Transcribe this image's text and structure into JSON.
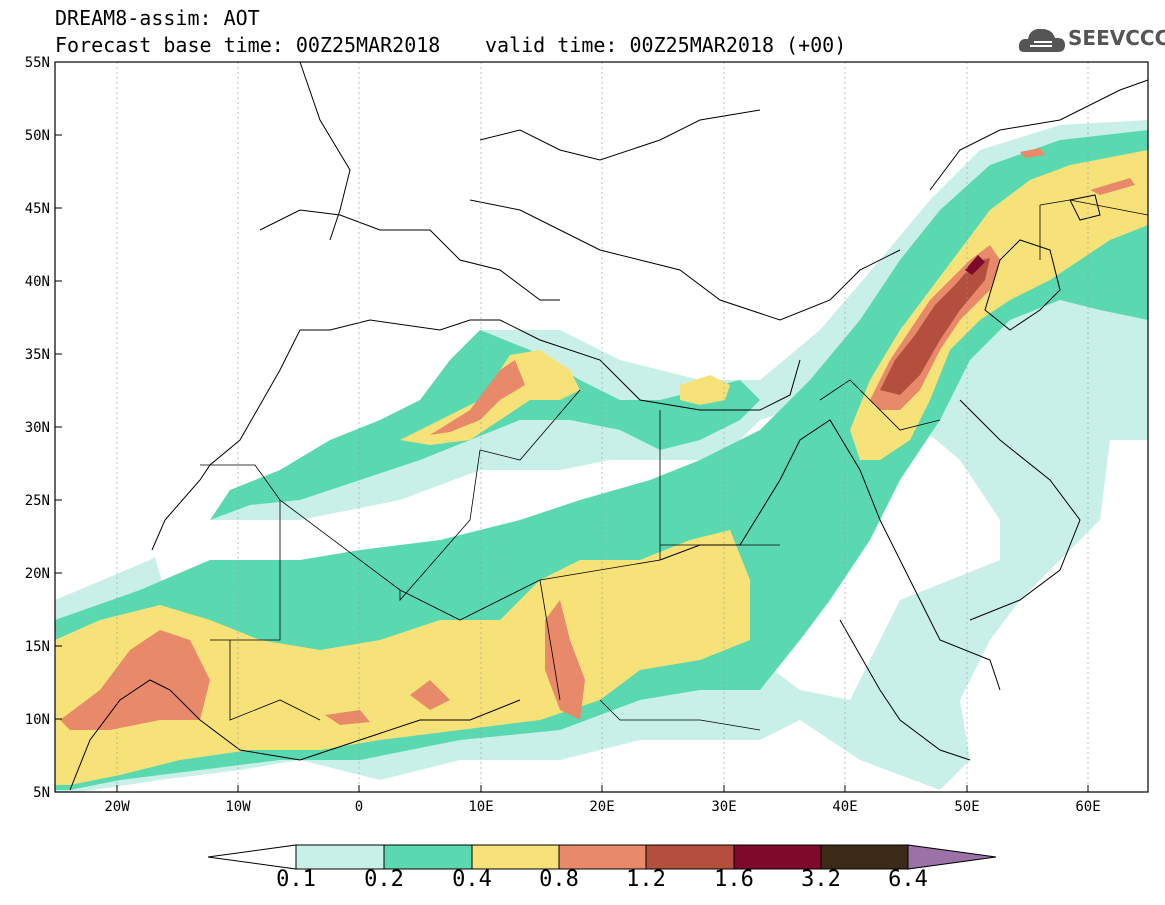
{
  "header": {
    "title": "DREAM8-assim: AOT",
    "base_time": "Forecast base time: 00Z25MAR2018",
    "valid_time": "valid time: 00Z25MAR2018 (+00)"
  },
  "logo": {
    "text": "SEEVCCC",
    "icon": "cloud-icon"
  },
  "map": {
    "lat_labels": [
      "55N",
      "50N",
      "45N",
      "40N",
      "35N",
      "30N",
      "25N",
      "20N",
      "15N",
      "10N",
      "5N"
    ],
    "lon_labels": [
      "20W",
      "10W",
      "0",
      "10E",
      "20E",
      "30E",
      "40E",
      "50E",
      "60E"
    ],
    "lat_range": [
      5,
      55
    ],
    "lon_range": [
      -25,
      65
    ],
    "grid": "dashed"
  },
  "colorbar": {
    "labels": [
      "0.1",
      "0.2",
      "0.4",
      "0.8",
      "1.2",
      "1.6",
      "3.2",
      "6.4"
    ],
    "colors": [
      "#ffffff",
      "#c8f0e8",
      "#5ad9b0",
      "#f7e27a",
      "#e8896a",
      "#b44f3e",
      "#7d0a2a",
      "#3c2a18",
      "#9a72a8"
    ]
  }
}
